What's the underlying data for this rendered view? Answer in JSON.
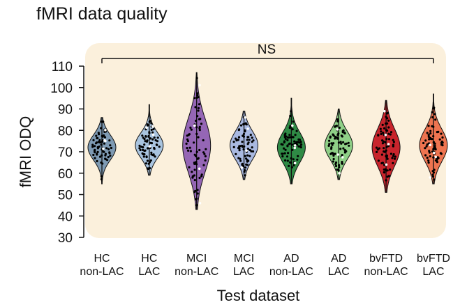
{
  "chart_data": {
    "type": "violin",
    "title": "fMRI data quality",
    "xlabel": "Test dataset",
    "ylabel": "fMRI ODQ",
    "ylim": [
      30,
      110
    ],
    "yticks": [
      30,
      40,
      50,
      60,
      70,
      80,
      90,
      100,
      110
    ],
    "grid": false,
    "annotation": "NS",
    "background_color": "#fbf0dc",
    "categories": [
      {
        "line1": "HC",
        "line2": "non-LAC",
        "min": 55,
        "max": 86,
        "median": 72,
        "color": "#7e9ab3"
      },
      {
        "line1": "HC",
        "line2": "LAC",
        "min": 59,
        "max": 92,
        "median": 73,
        "color": "#a9c4df"
      },
      {
        "line1": "MCI",
        "line2": "non-LAC",
        "min": 43,
        "max": 107,
        "median": 73,
        "color": "#9566b5"
      },
      {
        "line1": "MCI",
        "line2": "LAC",
        "min": 57,
        "max": 89,
        "median": 73,
        "color": "#a9b9e1"
      },
      {
        "line1": "AD",
        "line2": "non-LAC",
        "min": 55,
        "max": 95,
        "median": 72,
        "color": "#2f8a45"
      },
      {
        "line1": "AD",
        "line2": "LAC",
        "min": 57,
        "max": 90,
        "median": 73,
        "color": "#8fcf87"
      },
      {
        "line1": "bvFTD",
        "line2": "non-LAC",
        "min": 51,
        "max": 94,
        "median": 72,
        "color": "#c8242c"
      },
      {
        "line1": "bvFTD",
        "line2": "LAC",
        "min": 55,
        "max": 97,
        "median": 73,
        "color": "#ee7450"
      }
    ]
  }
}
